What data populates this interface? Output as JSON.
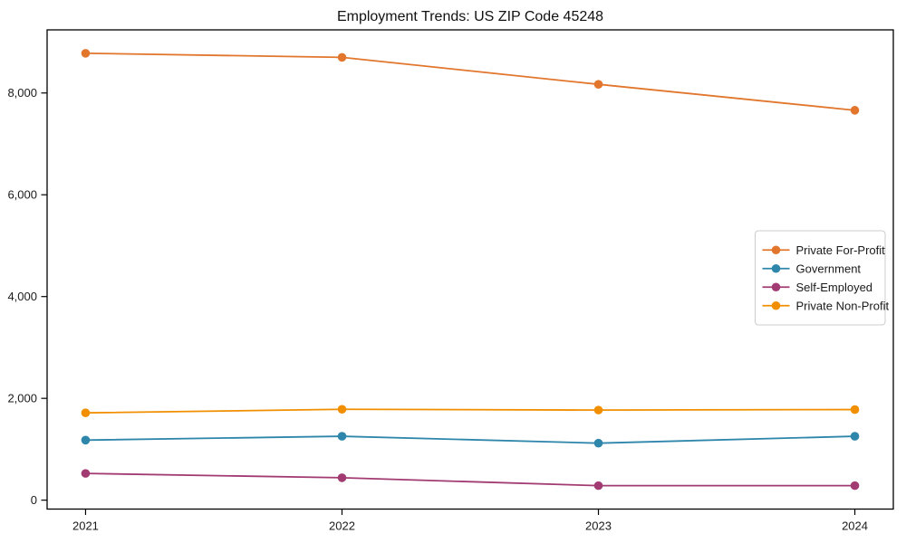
{
  "page": {
    "background": "#ffffff"
  },
  "chart_data": {
    "type": "line",
    "title": "Employment Trends: US ZIP Code 45248",
    "x_values": [
      2021,
      2022,
      2023,
      2024
    ],
    "x_tick_labels": [
      "2021",
      "2022",
      "2023",
      "2024"
    ],
    "series": [
      {
        "name": "Private For-Profit",
        "color": "#E1762C",
        "values": [
          8780,
          8700,
          8170,
          7660
        ]
      },
      {
        "name": "Government",
        "color": "#2E86AB",
        "values": [
          1180,
          1255,
          1120,
          1255
        ]
      },
      {
        "name": "Self-Employed",
        "color": "#A23B72",
        "values": [
          525,
          440,
          285,
          285
        ]
      },
      {
        "name": "Private Non-Profit",
        "color": "#F18F01",
        "values": [
          1715,
          1785,
          1770,
          1780
        ]
      }
    ],
    "yticks": [
      0,
      2000,
      4000,
      6000,
      8000
    ],
    "ytick_labels": [
      "0",
      "2,000",
      "4,000",
      "6,000",
      "8,000"
    ],
    "ylim": [
      -175,
      9240
    ],
    "xlim": [
      2020.85,
      2024.15
    ],
    "grid": false,
    "legend_position": "center right",
    "marker": "circle",
    "axis_color": "#000000",
    "tick_text_color": "#1a1a1a",
    "legend_border_color": "#cccccc",
    "legend_background": "#ffffff"
  }
}
